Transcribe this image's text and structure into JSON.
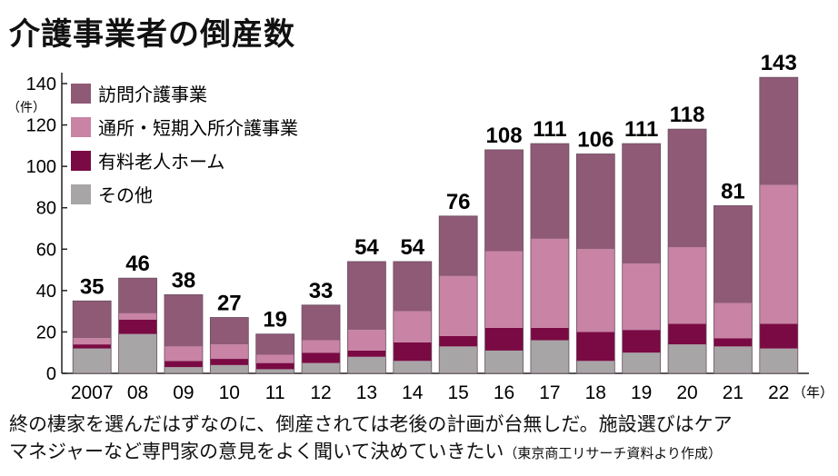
{
  "title": "介護事業者の倒産数",
  "caption": {
    "line1": "終の棲家を選んだはずなのに、倒産されては老後の計画が台無しだ。施設選びはケア",
    "line2": "マネジャーなど専門家の意見をよく聞いて決めていきたい",
    "source": "（東京商工リサーチ資料より作成）"
  },
  "chart_data": {
    "type": "bar",
    "stacked": true,
    "categories": [
      "2007",
      "08",
      "09",
      "10",
      "11",
      "12",
      "13",
      "14",
      "15",
      "16",
      "17",
      "18",
      "19",
      "20",
      "21",
      "22"
    ],
    "x_unit": "（年）",
    "y_unit": "（件）",
    "ylim": [
      0,
      140
    ],
    "yticks": [
      0,
      20,
      40,
      60,
      80,
      100,
      120,
      140
    ],
    "totals": [
      35,
      46,
      38,
      27,
      19,
      33,
      54,
      54,
      76,
      108,
      111,
      106,
      111,
      118,
      81,
      143
    ],
    "series": [
      {
        "name": "その他",
        "color": "#a7a5a6",
        "values": [
          12,
          19,
          3,
          4,
          2,
          5,
          8,
          6,
          13,
          11,
          16,
          6,
          10,
          14,
          13,
          12
        ]
      },
      {
        "name": "有料老人ホーム",
        "color": "#7a0a43",
        "values": [
          2,
          7,
          3,
          3,
          3,
          5,
          3,
          9,
          5,
          11,
          6,
          14,
          11,
          10,
          4,
          12
        ]
      },
      {
        "name": "通所・短期入所介護事業",
        "color": "#c883a5",
        "values": [
          3,
          3,
          7,
          7,
          4,
          6,
          10,
          15,
          29,
          37,
          43,
          40,
          32,
          37,
          17,
          67
        ]
      },
      {
        "name": "訪問介護事業",
        "color": "#8f5a76",
        "values": [
          18,
          17,
          25,
          13,
          10,
          17,
          33,
          24,
          29,
          49,
          46,
          46,
          58,
          57,
          47,
          52
        ]
      }
    ],
    "legend_order": [
      3,
      2,
      1,
      0
    ],
    "legend_position": "top-left"
  }
}
